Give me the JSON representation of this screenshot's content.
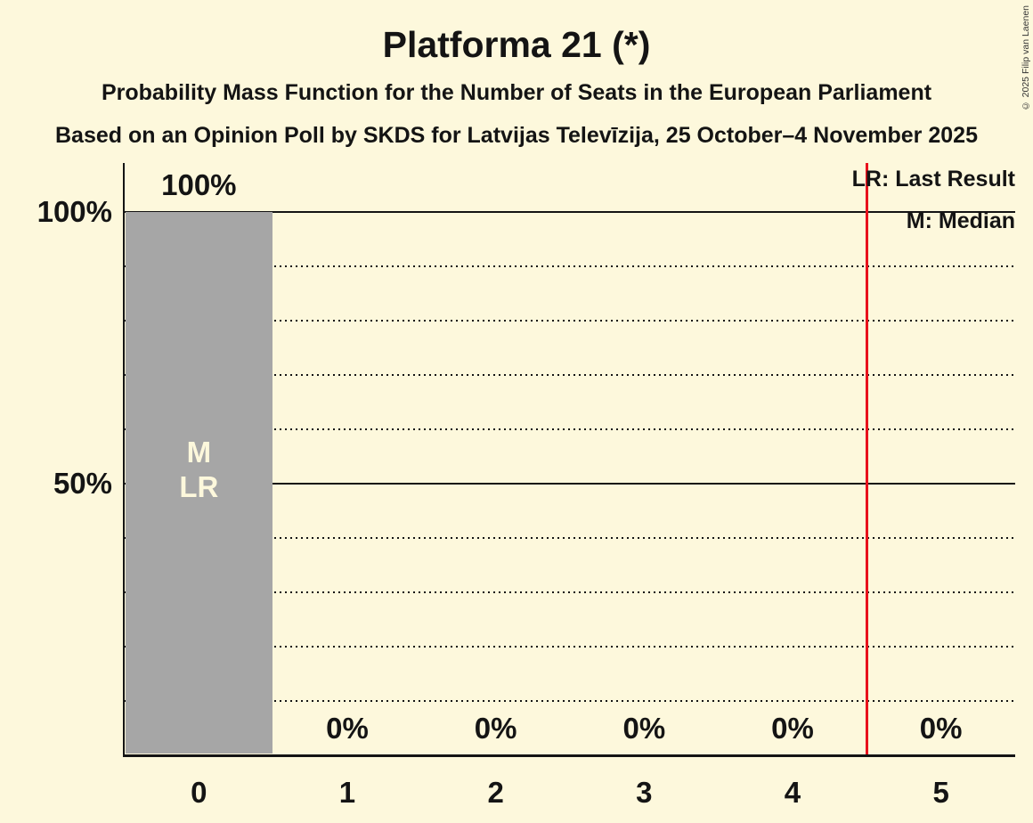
{
  "header": {
    "title": "Platforma 21 (*)",
    "subtitle": "Probability Mass Function for the Number of Seats in the European Parliament",
    "source_line": "Based on an Opinion Poll by SKDS for Latvijas Televīzija, 25 October–4 November 2025",
    "copyright": "© 2025 Filip van Laenen"
  },
  "chart_data": {
    "type": "bar",
    "title": "Platforma 21 (*)",
    "xlabel": "",
    "ylabel": "",
    "categories": [
      "0",
      "1",
      "2",
      "3",
      "4",
      "5"
    ],
    "values": [
      100,
      0,
      0,
      0,
      0,
      0
    ],
    "value_labels": [
      "100%",
      "0%",
      "0%",
      "0%",
      "0%",
      "0%"
    ],
    "ylim": [
      0,
      100
    ],
    "y_tick_labels": [
      {
        "value": 100,
        "label": "100%"
      },
      {
        "value": 50,
        "label": "50%"
      }
    ],
    "solid_gridlines": [
      100,
      50
    ],
    "dotted_gridlines": [
      90,
      80,
      70,
      60,
      40,
      30,
      20,
      10
    ],
    "legend": [
      "LR: Last Result",
      "M: Median"
    ],
    "legend_position": "top-right",
    "bar_annotation": {
      "category": "0",
      "lines": [
        "M",
        "LR"
      ]
    },
    "median_category": "0",
    "last_result_category": "0",
    "vertical_red_line": {
      "x": 4.5,
      "color": "#e8121d"
    },
    "colors": {
      "background": "#fdf8dc",
      "bar": "#a6a6a6",
      "bar_text": "#fdf8dc",
      "text": "#141414"
    }
  }
}
